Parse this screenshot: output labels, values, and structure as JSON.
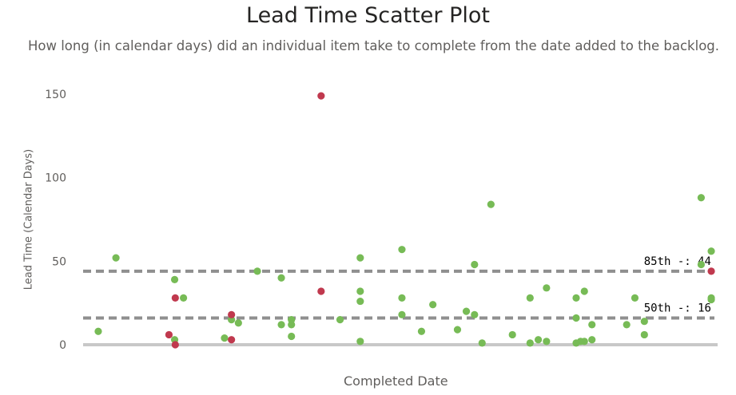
{
  "chart_data": {
    "type": "scatter",
    "title": "Lead Time Scatter Plot",
    "subtitle": "How long (in calendar days) did an individual item take to complete from the date added to the backlog.",
    "xlabel": "Completed Date",
    "ylabel": "Lead Time (Calendar Days)",
    "ylim": [
      0,
      150
    ],
    "yticks": [
      0,
      50,
      100,
      150
    ],
    "grid": false,
    "colors": {
      "normal": "#77bb56",
      "outlier": "#c0394e",
      "reference": "#8f8f8f",
      "baseline": "#c8c8c8"
    },
    "x_note": "x axis has no tick labels; x values are relative positions 0-1",
    "reference_lines": [
      {
        "label": "85th -: 44",
        "value": 44
      },
      {
        "label": "50th -: 16",
        "value": 16
      }
    ],
    "series": [
      {
        "color": "#77bb56",
        "points": [
          [
            0.024,
            8
          ],
          [
            0.052,
            52
          ],
          [
            0.145,
            39
          ],
          [
            0.145,
            3
          ],
          [
            0.159,
            28
          ],
          [
            0.224,
            4
          ],
          [
            0.235,
            15
          ],
          [
            0.246,
            13
          ],
          [
            0.276,
            44
          ],
          [
            0.314,
            40
          ],
          [
            0.314,
            12
          ],
          [
            0.33,
            12
          ],
          [
            0.33,
            5
          ],
          [
            0.33,
            15
          ],
          [
            0.407,
            15
          ],
          [
            0.439,
            52
          ],
          [
            0.439,
            32
          ],
          [
            0.439,
            26
          ],
          [
            0.439,
            2
          ],
          [
            0.505,
            57
          ],
          [
            0.505,
            28
          ],
          [
            0.505,
            18
          ],
          [
            0.536,
            8
          ],
          [
            0.554,
            24
          ],
          [
            0.593,
            9
          ],
          [
            0.607,
            20
          ],
          [
            0.62,
            48
          ],
          [
            0.62,
            18
          ],
          [
            0.632,
            1
          ],
          [
            0.646,
            84
          ],
          [
            0.68,
            6
          ],
          [
            0.708,
            28
          ],
          [
            0.708,
            1
          ],
          [
            0.721,
            3
          ],
          [
            0.734,
            34
          ],
          [
            0.734,
            2
          ],
          [
            0.781,
            16
          ],
          [
            0.781,
            28
          ],
          [
            0.781,
            1
          ],
          [
            0.788,
            2
          ],
          [
            0.794,
            32
          ],
          [
            0.794,
            2
          ],
          [
            0.806,
            12
          ],
          [
            0.806,
            3
          ],
          [
            0.861,
            12
          ],
          [
            0.874,
            28
          ],
          [
            0.889,
            14
          ],
          [
            0.889,
            6
          ],
          [
            0.979,
            88
          ],
          [
            0.979,
            48
          ],
          [
            0.995,
            56
          ],
          [
            0.995,
            28
          ],
          [
            0.995,
            27
          ]
        ]
      },
      {
        "color": "#c0394e",
        "points": [
          [
            0.136,
            6
          ],
          [
            0.146,
            28
          ],
          [
            0.146,
            0
          ],
          [
            0.235,
            18
          ],
          [
            0.235,
            3
          ],
          [
            0.377,
            149
          ],
          [
            0.377,
            32
          ],
          [
            0.995,
            44
          ]
        ]
      }
    ]
  }
}
